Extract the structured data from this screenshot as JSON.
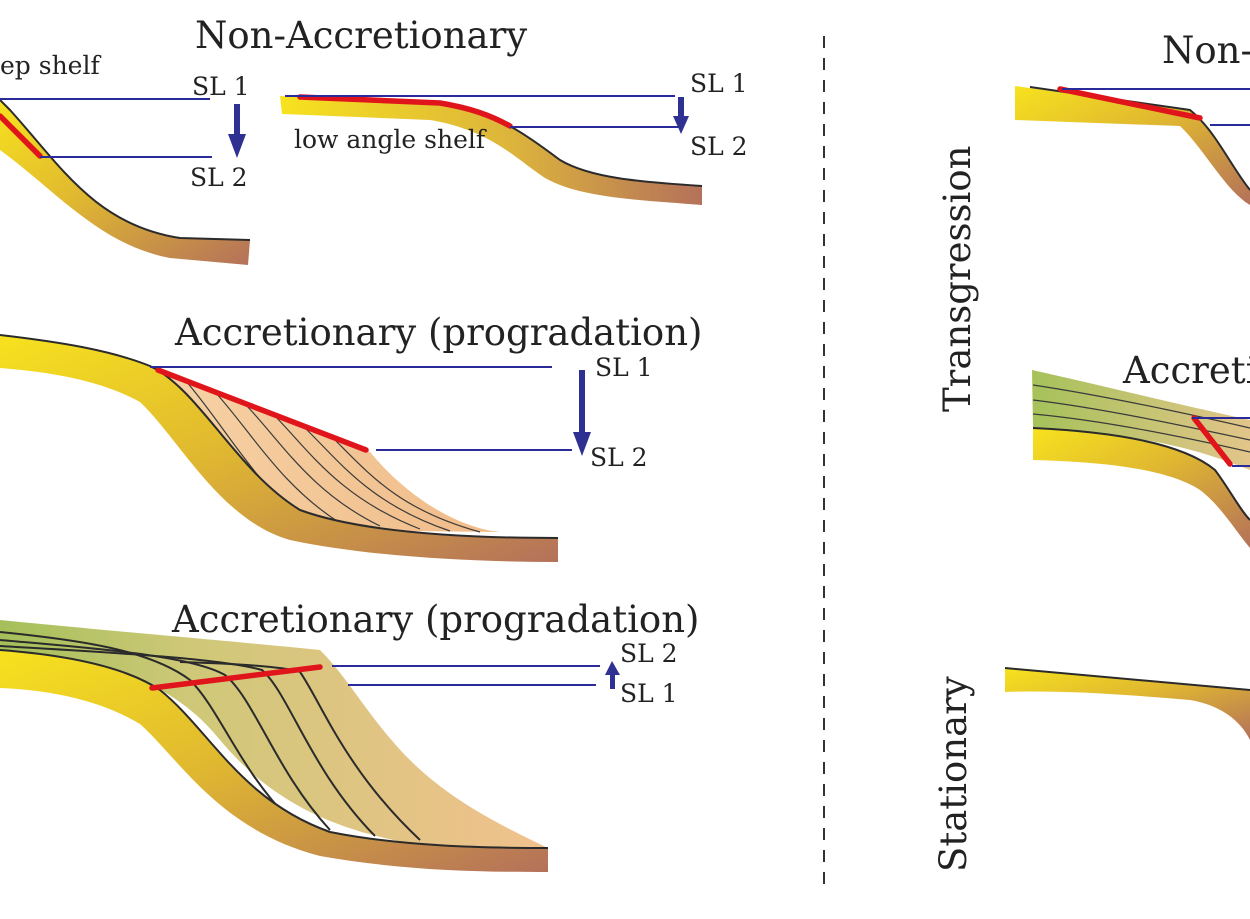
{
  "left": {
    "panel1": {
      "title": "Non-Accretionary",
      "steep_label": "ep shelf",
      "low_angle_label": "low angle shelf",
      "sl1_a": "SL 1",
      "sl2_a": "SL 2",
      "sl1_b": "SL 1",
      "sl2_b": "SL 2"
    },
    "panel2": {
      "title": "Accretionary (progradation)",
      "sl1": "SL 1",
      "sl2": "SL 2"
    },
    "panel3": {
      "title": "Accretionary (progradation)",
      "sl2": "SL 2",
      "sl1": "SL 1"
    }
  },
  "right": {
    "transgression_label": "Transgression",
    "stationary_label": "Stationary",
    "non_accretionary_title": "Non-",
    "accretionary_title": "Accretio"
  },
  "colors": {
    "sea_level_line": "#2a2a9a",
    "shelf_edge_red": "#e0141b",
    "arrow_blue": "#2e3191",
    "shelf_yellow": "#f3d21a",
    "shelf_brown": "#b8735a",
    "wedge_peach": "#f4c79a"
  }
}
